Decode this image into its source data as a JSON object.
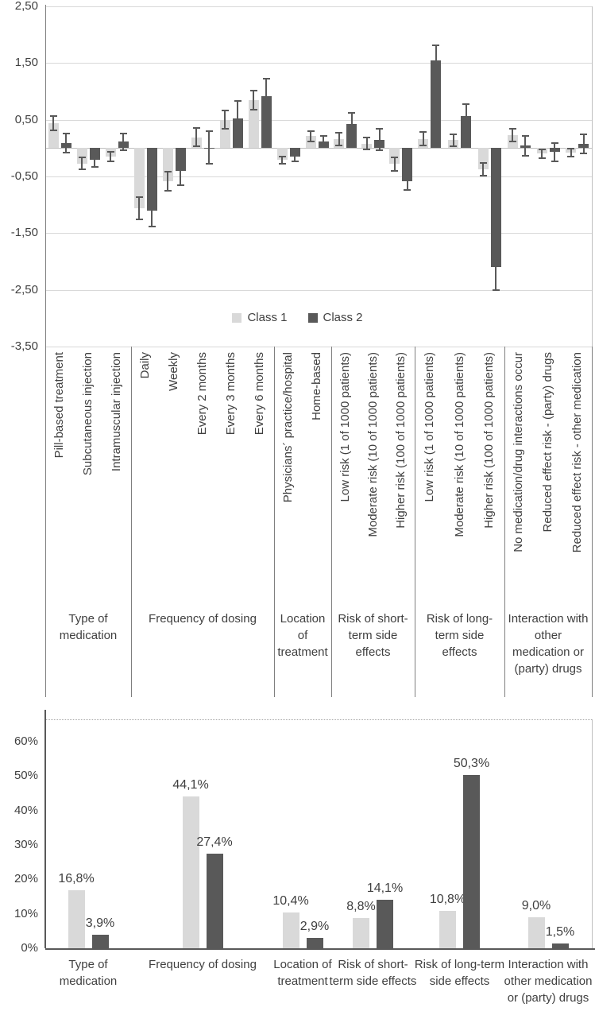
{
  "colors": {
    "class1": "#d9d9d9",
    "class2": "#595959",
    "error_bar": "#595959",
    "text": "#404040",
    "gridline": "#d9d9d9",
    "axis": "#7f7f7f"
  },
  "legend": {
    "items": [
      {
        "label": "Class 1",
        "color": "#d9d9d9"
      },
      {
        "label": "Class 2",
        "color": "#595959"
      }
    ]
  },
  "chart_data": [
    {
      "type": "bar",
      "name": "part-worth utilities by class",
      "title": "",
      "ylim": [
        -3.5,
        2.5
      ],
      "grid": true,
      "error_bars": true,
      "legend_position": "bottom-center",
      "ytick_values": [
        2.5,
        1.5,
        0.5,
        -0.5,
        -1.5,
        -2.5,
        -3.5
      ],
      "ytick_labels": [
        "2,50",
        "1,50",
        "0,50",
        "-0,50",
        "-1,50",
        "-2,50",
        "-3,50"
      ],
      "series_names": [
        "Class 1",
        "Class 2"
      ],
      "groups": [
        {
          "label": "Type of medication",
          "items": [
            {
              "label": "Pill-based treatment",
              "class1": 0.44,
              "class1_err": 0.12,
              "class2": 0.09,
              "class2_err": 0.17
            },
            {
              "label": "Subcutaneous injection",
              "class1": -0.27,
              "class1_err": 0.11,
              "class2": -0.2,
              "class2_err": 0.13
            },
            {
              "label": "Intramuscular injection",
              "class1": -0.15,
              "class1_err": 0.08,
              "class2": 0.11,
              "class2_err": 0.15
            }
          ]
        },
        {
          "label": "Frequency of dosing",
          "items": [
            {
              "label": "Daily",
              "class1": -1.06,
              "class1_err": 0.2,
              "class2": -1.1,
              "class2_err": 0.28
            },
            {
              "label": "Weekly",
              "class1": -0.58,
              "class1_err": 0.17,
              "class2": -0.4,
              "class2_err": 0.26
            },
            {
              "label": "Every 2 months",
              "class1": 0.19,
              "class1_err": 0.16,
              "class2": 0.01,
              "class2_err": 0.29
            },
            {
              "label": "Every 3 months",
              "class1": 0.5,
              "class1_err": 0.16,
              "class2": 0.53,
              "class2_err": 0.3
            },
            {
              "label": "Every 6 months",
              "class1": 0.85,
              "class1_err": 0.17,
              "class2": 0.91,
              "class2_err": 0.31
            }
          ]
        },
        {
          "label": "Location of treatment",
          "items": [
            {
              "label": "Physicians´ practice/hospital",
              "class1": -0.21,
              "class1_err": 0.06,
              "class2": -0.15,
              "class2_err": 0.09
            },
            {
              "label": "Home-based",
              "class1": 0.21,
              "class1_err": 0.09,
              "class2": 0.12,
              "class2_err": 0.09
            }
          ]
        },
        {
          "label": "Risk of short-term side effects",
          "items": [
            {
              "label": "Low risk (1 of 1000 patients)",
              "class1": 0.16,
              "class1_err": 0.11,
              "class2": 0.43,
              "class2_err": 0.19
            },
            {
              "label": "Moderate risk (10 of 1000 patients)",
              "class1": 0.08,
              "class1_err": 0.11,
              "class2": 0.15,
              "class2_err": 0.19
            },
            {
              "label": "Higher risk (100 of 1000 patients)",
              "class1": -0.28,
              "class1_err": 0.12,
              "class2": -0.59,
              "class2_err": 0.15
            }
          ]
        },
        {
          "label": "Risk of long-term side effects",
          "items": [
            {
              "label": "Low risk (1 of 1000 patients)",
              "class1": 0.16,
              "class1_err": 0.12,
              "class2": 1.55,
              "class2_err": 0.27
            },
            {
              "label": "Moderate risk (10 of 1000 patients)",
              "class1": 0.14,
              "class1_err": 0.11,
              "class2": 0.56,
              "class2_err": 0.22
            },
            {
              "label": "Higher risk (100 of 1000 patients)",
              "class1": -0.37,
              "class1_err": 0.11,
              "class2": -2.1,
              "class2_err": 0.4
            }
          ]
        },
        {
          "label": "Interaction with other medication or (party) drugs",
          "items": [
            {
              "label": "No medication/drug interactions occur",
              "class1": 0.23,
              "class1_err": 0.11,
              "class2": 0.04,
              "class2_err": 0.18
            },
            {
              "label": "Reduced effect risk - (party) drugs",
              "class1": -0.1,
              "class1_err": 0.08,
              "class2": -0.07,
              "class2_err": 0.16
            },
            {
              "label": "Reduced effect risk - other medication",
              "class1": -0.08,
              "class1_err": 0.07,
              "class2": 0.08,
              "class2_err": 0.17
            }
          ]
        }
      ]
    },
    {
      "type": "bar",
      "name": "relative importance by class",
      "title": "",
      "ylim": [
        0,
        65
      ],
      "grid": false,
      "ytick_values": [
        0,
        10,
        20,
        30,
        40,
        50,
        60
      ],
      "ytick_labels": [
        "0%",
        "10%",
        "20%",
        "30%",
        "40%",
        "50%",
        "60%"
      ],
      "categories": [
        "Type of medication",
        "Frequency of dosing",
        "Location of treatment",
        "Risk of short-term side effects",
        "Risk of long-term side effects",
        "Interaction with other medication or (party) drugs"
      ],
      "series": [
        {
          "name": "Class 1",
          "values": [
            16.8,
            44.1,
            10.4,
            8.8,
            10.8,
            9.0
          ],
          "labels": [
            "16,8%",
            "44,1%",
            "10,4%",
            "8,8%",
            "10,8%",
            "9,0%"
          ]
        },
        {
          "name": "Class 2",
          "values": [
            3.9,
            27.4,
            2.9,
            14.1,
            50.3,
            1.5
          ],
          "labels": [
            "3,9%",
            "27,4%",
            "2,9%",
            "14,1%",
            "50,3%",
            "1,5%"
          ]
        }
      ]
    }
  ]
}
